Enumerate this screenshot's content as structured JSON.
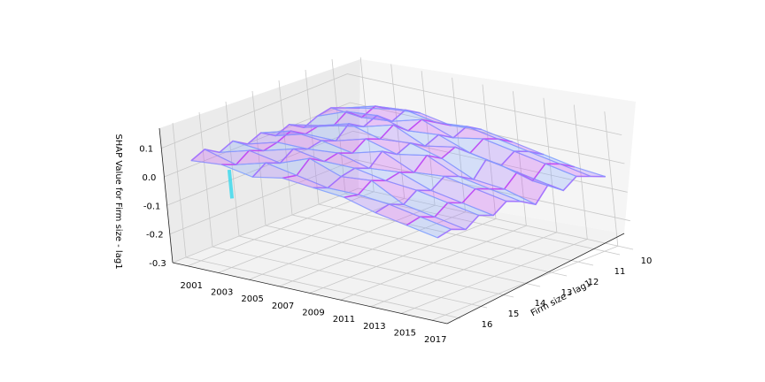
{
  "chart_data": {
    "type": "surface3d",
    "title": "",
    "xlabel": "",
    "ylabel": "Firm size - lag1",
    "zlabel": "SHAP Value for Firm size - lag1",
    "x_ticks": [
      "2001",
      "2003",
      "2005",
      "2007",
      "2009",
      "2011",
      "2013",
      "2015",
      "2017"
    ],
    "y_ticks": [
      "10",
      "11",
      "12",
      "13",
      "14",
      "15",
      "16"
    ],
    "z_ticks": [
      "-0.3",
      "-0.2",
      "-0.1",
      "0.0",
      "0.1"
    ],
    "xlim": [
      2000,
      2018
    ],
    "ylim": [
      9.5,
      16.5
    ],
    "zlim": [
      -0.3,
      0.17
    ],
    "grid": true,
    "colormap": [
      "#7fa0ff",
      "#9d70ff",
      "#c146f5",
      "#3fd9ec"
    ],
    "surface_rows": [
      {
        "year": 2001,
        "values": [
          0.0,
          0.02,
          0.04,
          0.03,
          0.01,
          0.04,
          0.02,
          0.05,
          0.03,
          0.06,
          0.04,
          0.07,
          0.05
        ]
      },
      {
        "year": 2003,
        "values": [
          0.02,
          0.05,
          0.03,
          0.07,
          0.04,
          0.06,
          0.05,
          0.08,
          0.06,
          0.05,
          0.07,
          0.04,
          0.06
        ]
      },
      {
        "year": 2005,
        "values": [
          0.03,
          0.06,
          0.04,
          0.08,
          0.06,
          0.09,
          0.05,
          0.07,
          0.06,
          0.08,
          0.05,
          0.07,
          0.04
        ]
      },
      {
        "year": 2007,
        "values": [
          0.01,
          0.04,
          0.07,
          0.05,
          0.09,
          0.06,
          0.08,
          0.05,
          0.07,
          0.06,
          0.09,
          0.05,
          0.06
        ]
      },
      {
        "year": 2009,
        "values": [
          0.02,
          0.05,
          0.03,
          0.06,
          0.04,
          0.07,
          0.05,
          0.08,
          0.04,
          0.06,
          0.05,
          0.03,
          0.05
        ]
      },
      {
        "year": 2011,
        "values": [
          0.0,
          0.03,
          0.05,
          0.02,
          0.06,
          0.04,
          0.07,
          0.03,
          0.05,
          0.04,
          0.06,
          0.03,
          0.04
        ]
      },
      {
        "year": 2013,
        "values": [
          -0.02,
          0.01,
          0.03,
          0.0,
          0.04,
          -0.01,
          0.02,
          0.04,
          0.01,
          0.03,
          0.0,
          0.02,
          0.01
        ]
      },
      {
        "year": 2015,
        "values": [
          -0.04,
          -0.01,
          0.01,
          -0.03,
          0.02,
          -0.02,
          0.0,
          0.02,
          -0.01,
          0.01,
          -0.02,
          0.0,
          -0.01
        ]
      },
      {
        "year": 2017,
        "values": [
          -0.05,
          -0.03,
          -0.01,
          -0.04,
          0.0,
          -0.05,
          -0.02,
          0.0,
          -0.03,
          -0.01,
          -0.04,
          -0.02,
          -0.03
        ]
      }
    ],
    "spike": {
      "year": 2002,
      "size": 15.2,
      "value": -0.1,
      "color": "#3fd9ec"
    }
  }
}
